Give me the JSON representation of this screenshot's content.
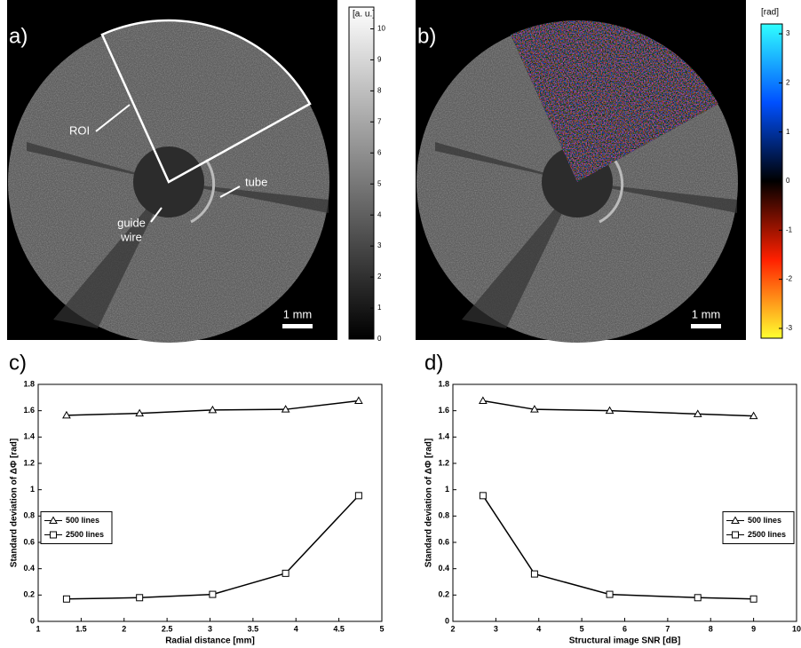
{
  "images": [
    {
      "label": "a)",
      "annotations": [
        "ROI",
        "tube",
        "guide",
        "wire",
        "1 mm"
      ],
      "colorbar": {
        "title": "[a. u.]",
        "lim": [
          0,
          10.7
        ],
        "ticks": [
          0,
          1,
          2,
          3,
          4,
          5,
          6,
          7,
          8,
          9,
          10
        ]
      }
    },
    {
      "label": "b)",
      "annotations": [
        "1 mm"
      ],
      "colorbar": {
        "title": "[rad]",
        "lim": [
          -3.2,
          3.2
        ],
        "ticks": [
          -3,
          -2,
          -1,
          0,
          1,
          2,
          3
        ]
      }
    }
  ],
  "chart_data": [
    {
      "type": "line",
      "label": "c)",
      "x_label": "Radial distance [mm]",
      "y_label": "Standard deviation of ΔΦ [rad]",
      "x": [
        1.33,
        2.18,
        3.03,
        3.88,
        4.73
      ],
      "series": [
        {
          "name": "500 lines",
          "color": "#000000",
          "marker": "triangle",
          "values": [
            1.565,
            1.58,
            1.605,
            1.61,
            1.675
          ]
        },
        {
          "name": "2500 lines",
          "color": "#000000",
          "marker": "square",
          "values": [
            0.17,
            0.18,
            0.205,
            0.365,
            0.955
          ]
        }
      ],
      "xlim": [
        1,
        5
      ],
      "xticks": [
        1,
        1.5,
        2,
        2.5,
        3,
        3.5,
        4,
        4.5,
        5
      ],
      "ylim": [
        0,
        1.8
      ],
      "yticks": [
        0,
        0.2,
        0.4,
        0.6,
        0.8,
        1,
        1.2,
        1.4,
        1.6,
        1.8
      ],
      "legend": "center left",
      "grid": false
    },
    {
      "type": "line",
      "label": "d)",
      "x_label": "Structural image SNR [dB]",
      "y_label": "Standard deviation of ΔΦ [rad]",
      "x": [
        2.7,
        3.9,
        5.65,
        7.7,
        9.0
      ],
      "series": [
        {
          "name": "500 lines",
          "color": "#000000",
          "marker": "triangle",
          "values": [
            1.675,
            1.61,
            1.6,
            1.575,
            1.56
          ]
        },
        {
          "name": "2500 lines",
          "color": "#000000",
          "marker": "square",
          "values": [
            0.955,
            0.36,
            0.205,
            0.18,
            0.17
          ]
        }
      ],
      "xlim": [
        2,
        10
      ],
      "xticks": [
        2,
        3,
        4,
        5,
        6,
        7,
        8,
        9,
        10
      ],
      "ylim": [
        0,
        1.8
      ],
      "yticks": [
        0,
        0.2,
        0.4,
        0.6,
        0.8,
        1,
        1.2,
        1.4,
        1.6,
        1.8
      ],
      "legend": "center right",
      "grid": false
    }
  ]
}
